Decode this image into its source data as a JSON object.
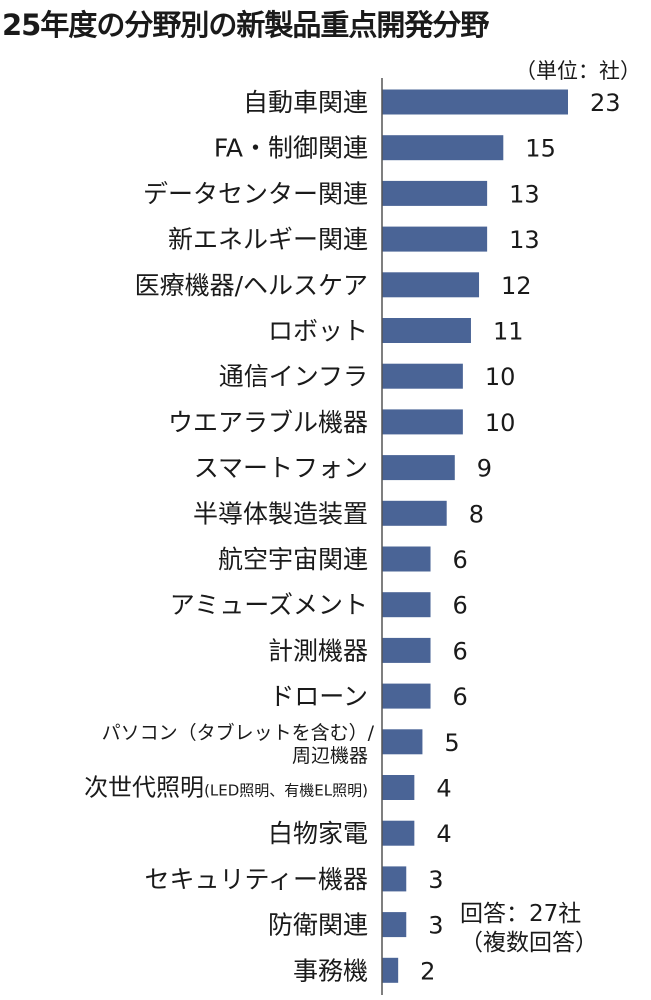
{
  "title": "25年度の分野別の新製品重点開発分野",
  "unit_note": "（単位：社）",
  "footnote": {
    "line1": "回答：27社",
    "line2": "（複数回答）"
  },
  "colors": {
    "bar": "#4a6496",
    "axis": "#555555",
    "text": "#1a1a1a"
  },
  "chart_data": {
    "type": "bar",
    "orientation": "horizontal",
    "title": "25年度の分野別の新製品重点開発分野",
    "unit": "（単位：社）",
    "categories": [
      {
        "name": "自動車関連",
        "sub": ""
      },
      {
        "name": "FA・制御関連",
        "sub": ""
      },
      {
        "name": "データセンター関連",
        "sub": ""
      },
      {
        "name": "新エネルギー関連",
        "sub": ""
      },
      {
        "name": "医療機器/ヘルスケア",
        "sub": ""
      },
      {
        "name": "ロボット",
        "sub": ""
      },
      {
        "name": "通信インフラ",
        "sub": ""
      },
      {
        "name": "ウエアラブル機器",
        "sub": ""
      },
      {
        "name": "スマートフォン",
        "sub": ""
      },
      {
        "name": "半導体製造装置",
        "sub": ""
      },
      {
        "name": "航空宇宙関連",
        "sub": ""
      },
      {
        "name": "アミューズメント",
        "sub": ""
      },
      {
        "name": "計測機器",
        "sub": ""
      },
      {
        "name": "ドローン",
        "sub": ""
      },
      {
        "name": "パソコン（タブレットを含む）/",
        "sub": "周辺機器"
      },
      {
        "name": "次世代照明",
        "sub": "(LED照明、有機EL照明)"
      },
      {
        "name": "白物家電",
        "sub": ""
      },
      {
        "name": "セキュリティー機器",
        "sub": ""
      },
      {
        "name": "防衛関連",
        "sub": ""
      },
      {
        "name": "事務機",
        "sub": ""
      }
    ],
    "values": [
      23,
      15,
      13,
      13,
      12,
      11,
      10,
      10,
      9,
      8,
      6,
      6,
      6,
      6,
      5,
      4,
      4,
      3,
      3,
      2
    ],
    "xlim": [
      0,
      23
    ],
    "grid": false,
    "legend": "none"
  }
}
